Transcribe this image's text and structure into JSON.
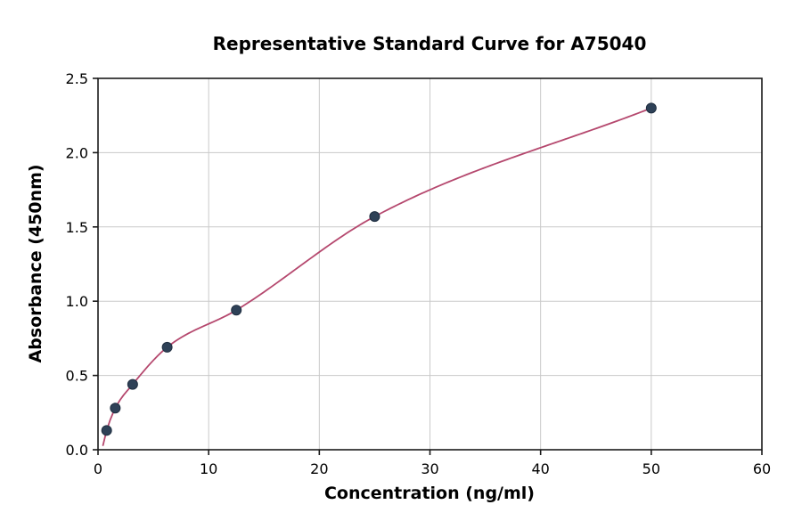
{
  "page": {
    "background": "#ffffff"
  },
  "chart_data": {
    "type": "scatter",
    "title": "Representative Standard Curve for A75040",
    "xlabel": "Concentration (ng/ml)",
    "ylabel": "Absorbance (450nm)",
    "xlim": [
      0,
      60
    ],
    "ylim": [
      0,
      2.5
    ],
    "x_ticks": [
      0,
      10,
      20,
      30,
      40,
      50,
      60
    ],
    "x_tick_labels": [
      "0",
      "10",
      "20",
      "30",
      "40",
      "50",
      "60"
    ],
    "y_ticks": [
      0,
      0.5,
      1.0,
      1.5,
      2.0,
      2.5
    ],
    "y_tick_labels": [
      "0.0",
      "0.5",
      "1.0",
      "1.5",
      "2.0",
      "2.5"
    ],
    "grid": true,
    "legend": "none",
    "series": [
      {
        "name": "standards",
        "points": [
          [
            0.78,
            0.13
          ],
          [
            1.56,
            0.28
          ],
          [
            3.13,
            0.44
          ],
          [
            6.25,
            0.69
          ],
          [
            12.5,
            0.94
          ],
          [
            25,
            1.57
          ],
          [
            50,
            2.3
          ]
        ]
      }
    ],
    "fit": {
      "type": "smooth-curve-through-points",
      "anchor_start": [
        0.45,
        0.03
      ]
    },
    "colors": {
      "curve": "#b5486e",
      "marker": "#2e4157",
      "marker_edge": "#1f2e40",
      "grid": "#c9c9c9",
      "axis": "#1a1a1a",
      "text": "#000000"
    }
  }
}
